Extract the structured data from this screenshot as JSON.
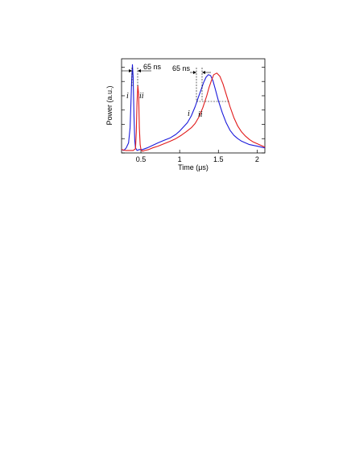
{
  "chart_data": {
    "type": "line",
    "xlabel": "Time (μs)",
    "ylabel": "Power (a.u.)",
    "xlim": [
      0.25,
      2.1
    ],
    "ylim": [
      0,
      1.12
    ],
    "x_ticks": [
      0.5,
      1,
      1.5,
      2
    ],
    "x_tick_labels": [
      "0.5",
      "1",
      "1.5",
      "2"
    ],
    "y_ticks": [
      0.0,
      0.17,
      0.34,
      0.51,
      0.68,
      0.85,
      1.02
    ],
    "series": [
      {
        "color": "#1a1adb",
        "x": [
          0.25,
          0.28,
          0.31,
          0.34,
          0.36,
          0.37,
          0.38,
          0.39,
          0.4,
          0.41,
          0.42,
          0.43,
          0.45,
          0.48,
          0.52,
          0.58,
          0.65,
          0.72,
          0.8,
          0.88,
          0.95,
          1.0,
          1.05,
          1.1,
          1.15,
          1.2,
          1.24,
          1.28,
          1.31,
          1.34,
          1.37,
          1.4,
          1.43,
          1.46,
          1.5,
          1.55,
          1.6,
          1.65,
          1.7,
          1.75,
          1.8,
          1.85,
          1.9,
          1.95,
          2.0,
          2.05,
          2.1
        ],
        "y": [
          0.04,
          0.03,
          0.06,
          0.12,
          0.3,
          0.55,
          0.85,
          1.05,
          0.9,
          0.45,
          0.15,
          0.06,
          0.03,
          0.04,
          0.04,
          0.06,
          0.09,
          0.12,
          0.15,
          0.18,
          0.22,
          0.26,
          0.31,
          0.36,
          0.44,
          0.55,
          0.66,
          0.76,
          0.84,
          0.9,
          0.93,
          0.92,
          0.86,
          0.76,
          0.62,
          0.48,
          0.36,
          0.27,
          0.21,
          0.17,
          0.14,
          0.12,
          0.1,
          0.09,
          0.08,
          0.07,
          0.06
        ]
      },
      {
        "color": "#e11a1a",
        "x": [
          0.25,
          0.3,
          0.35,
          0.4,
          0.43,
          0.44,
          0.45,
          0.46,
          0.47,
          0.48,
          0.49,
          0.5,
          0.52,
          0.55,
          0.6,
          0.65,
          0.72,
          0.8,
          0.88,
          0.95,
          1.02,
          1.08,
          1.15,
          1.2,
          1.25,
          1.3,
          1.35,
          1.38,
          1.41,
          1.44,
          1.48,
          1.52,
          1.56,
          1.6,
          1.65,
          1.7,
          1.75,
          1.8,
          1.85,
          1.9,
          1.95,
          2.0,
          2.05,
          2.1
        ],
        "y": [
          0.04,
          0.03,
          0.03,
          0.03,
          0.05,
          0.25,
          0.6,
          0.8,
          0.7,
          0.3,
          0.1,
          0.04,
          0.02,
          0.03,
          0.04,
          0.06,
          0.08,
          0.11,
          0.14,
          0.17,
          0.21,
          0.25,
          0.3,
          0.35,
          0.43,
          0.54,
          0.68,
          0.78,
          0.86,
          0.93,
          0.95,
          0.91,
          0.82,
          0.7,
          0.55,
          0.42,
          0.32,
          0.25,
          0.2,
          0.16,
          0.13,
          0.11,
          0.09,
          0.07
        ]
      }
    ],
    "annotations": [
      {
        "text": "65 ns"
      },
      {
        "text": "65 ns"
      },
      {
        "text": "i"
      },
      {
        "text": "ii"
      },
      {
        "text": "i"
      },
      {
        "text": "ii"
      }
    ]
  }
}
